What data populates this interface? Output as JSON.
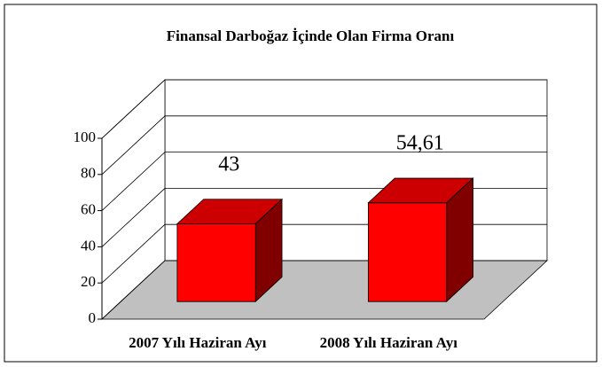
{
  "chart_data": {
    "type": "bar3d",
    "title": "Finansal Darboğaz İçinde Olan Firma Oranı",
    "categories": [
      "2007 Yılı Haziran Ayı",
      "2008 Yılı Haziran Ayı"
    ],
    "values": [
      43,
      54.61
    ],
    "value_labels": [
      "43",
      "54,61"
    ],
    "color": "#ff0000",
    "ylim": [
      0,
      100
    ],
    "yticks": [
      0,
      20,
      40,
      60,
      80,
      100
    ],
    "grid": true
  }
}
